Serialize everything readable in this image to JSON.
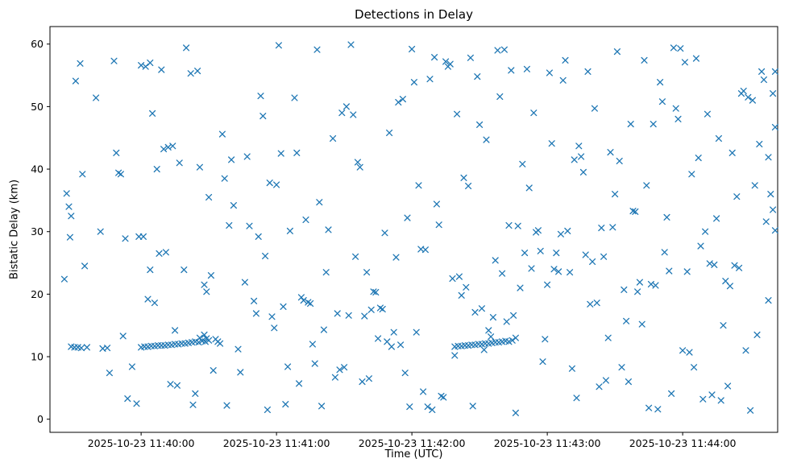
{
  "figure": {
    "title": "Detections in Delay",
    "xlabel": "Time (UTC)",
    "ylabel": "Bistatic Delay (km)"
  },
  "chart_data": {
    "type": "scatter",
    "title": "Detections in Delay",
    "xlabel": "Time (UTC)",
    "ylabel": "Bistatic Delay (km)",
    "marker": "x",
    "marker_color": "#1f77b4",
    "grid": false,
    "legend": "none",
    "x_encoding": "seconds after 2025-10-23 11:39:00 UTC",
    "xlim": [
      19.6,
      342.1
    ],
    "ylim": [
      -2.1,
      62.8
    ],
    "x_ticks": [
      {
        "value": 60,
        "label": "2025-10-23 11:40:00"
      },
      {
        "value": 120,
        "label": "2025-10-23 11:41:00"
      },
      {
        "value": 180,
        "label": "2025-10-23 11:42:00"
      },
      {
        "value": 240,
        "label": "2025-10-23 11:43:00"
      },
      {
        "value": 300,
        "label": "2025-10-23 11:44:00"
      }
    ],
    "y_ticks": [
      0,
      10,
      20,
      30,
      40,
      50,
      60
    ],
    "points": [
      [
        29,
        11.6
      ],
      [
        30.5,
        11.5
      ],
      [
        32,
        11.5
      ],
      [
        33.5,
        11.4
      ],
      [
        36,
        11.5
      ],
      [
        43,
        11.3
      ],
      [
        45,
        11.4
      ],
      [
        26,
        22.4
      ],
      [
        27,
        36.1
      ],
      [
        28,
        34.0
      ],
      [
        28.5,
        29.1
      ],
      [
        29,
        32.5
      ],
      [
        31,
        54.1
      ],
      [
        33,
        56.9
      ],
      [
        34,
        39.2
      ],
      [
        35,
        24.5
      ],
      [
        40,
        51.4
      ],
      [
        42,
        30.0
      ],
      [
        46,
        7.4
      ],
      [
        48,
        57.3
      ],
      [
        49,
        42.6
      ],
      [
        50,
        39.4
      ],
      [
        51,
        39.2
      ],
      [
        52,
        13.3
      ],
      [
        53,
        28.9
      ],
      [
        54,
        3.3
      ],
      [
        56,
        8.4
      ],
      [
        58,
        2.5
      ],
      [
        59,
        29.2
      ],
      [
        60,
        11.5
      ],
      [
        61.5,
        11.6
      ],
      [
        63,
        11.6
      ],
      [
        64.5,
        11.7
      ],
      [
        66,
        11.7
      ],
      [
        67.5,
        11.8
      ],
      [
        69,
        11.8
      ],
      [
        70.5,
        11.8
      ],
      [
        72,
        11.9
      ],
      [
        73.5,
        11.9
      ],
      [
        75,
        12.0
      ],
      [
        76.5,
        12.0
      ],
      [
        78,
        12.1
      ],
      [
        79.5,
        12.1
      ],
      [
        81,
        12.2
      ],
      [
        82.5,
        12.3
      ],
      [
        84,
        12.4
      ],
      [
        85.5,
        12.3
      ],
      [
        87,
        12.5
      ],
      [
        88.5,
        12.4
      ],
      [
        90,
        12.6
      ],
      [
        86,
        13.0
      ],
      [
        88,
        13.5
      ],
      [
        89,
        12.9
      ],
      [
        60,
        56.6
      ],
      [
        61,
        29.2
      ],
      [
        62,
        56.4
      ],
      [
        63,
        19.2
      ],
      [
        64,
        23.9
      ],
      [
        64,
        57.0
      ],
      [
        65,
        48.9
      ],
      [
        66,
        18.6
      ],
      [
        67,
        40.0
      ],
      [
        68,
        26.5
      ],
      [
        69,
        55.9
      ],
      [
        70,
        43.2
      ],
      [
        71,
        26.7
      ],
      [
        72,
        43.5
      ],
      [
        73,
        5.6
      ],
      [
        74,
        43.7
      ],
      [
        75,
        14.2
      ],
      [
        76,
        5.4
      ],
      [
        77,
        41.0
      ],
      [
        79,
        23.9
      ],
      [
        80,
        59.4
      ],
      [
        82,
        55.3
      ],
      [
        83,
        2.3
      ],
      [
        84,
        4.1
      ],
      [
        85,
        55.7
      ],
      [
        86,
        40.3
      ],
      [
        88,
        21.5
      ],
      [
        89,
        20.4
      ],
      [
        90,
        35.5
      ],
      [
        91,
        23.0
      ],
      [
        92,
        7.8
      ],
      [
        93,
        12.8
      ],
      [
        94,
        12.4
      ],
      [
        95,
        12.1
      ],
      [
        96,
        45.6
      ],
      [
        97,
        38.5
      ],
      [
        98,
        2.2
      ],
      [
        99,
        31.0
      ],
      [
        100,
        41.5
      ],
      [
        101,
        34.2
      ],
      [
        103,
        11.2
      ],
      [
        104,
        7.5
      ],
      [
        106,
        21.9
      ],
      [
        107,
        42.0
      ],
      [
        108,
        30.9
      ],
      [
        110,
        18.9
      ],
      [
        111,
        16.9
      ],
      [
        112,
        29.2
      ],
      [
        113,
        51.7
      ],
      [
        114,
        48.5
      ],
      [
        115,
        26.1
      ],
      [
        116,
        1.5
      ],
      [
        117,
        37.8
      ],
      [
        118,
        16.4
      ],
      [
        119,
        14.6
      ],
      [
        120,
        37.5
      ],
      [
        121,
        59.8
      ],
      [
        122,
        42.5
      ],
      [
        123,
        18.0
      ],
      [
        124,
        2.4
      ],
      [
        125,
        8.4
      ],
      [
        126,
        30.1
      ],
      [
        128,
        51.4
      ],
      [
        129,
        42.6
      ],
      [
        130,
        5.7
      ],
      [
        131,
        19.5
      ],
      [
        132,
        19.0
      ],
      [
        133,
        31.9
      ],
      [
        134,
        18.7
      ],
      [
        135,
        18.5
      ],
      [
        136,
        12.0
      ],
      [
        137,
        8.9
      ],
      [
        138,
        59.1
      ],
      [
        139,
        34.7
      ],
      [
        140,
        2.1
      ],
      [
        141,
        14.3
      ],
      [
        142,
        23.5
      ],
      [
        143,
        30.3
      ],
      [
        145,
        44.9
      ],
      [
        146,
        6.7
      ],
      [
        147,
        16.9
      ],
      [
        148,
        7.9
      ],
      [
        149,
        49.0
      ],
      [
        150,
        8.3
      ],
      [
        151,
        50.0
      ],
      [
        152,
        16.6
      ],
      [
        153,
        59.9
      ],
      [
        154,
        48.7
      ],
      [
        155,
        26.0
      ],
      [
        156,
        41.1
      ],
      [
        157,
        40.3
      ],
      [
        158,
        6.0
      ],
      [
        159,
        16.5
      ],
      [
        160,
        23.5
      ],
      [
        161,
        6.5
      ],
      [
        162,
        17.5
      ],
      [
        163,
        20.4
      ],
      [
        164,
        20.3
      ],
      [
        165,
        12.9
      ],
      [
        166,
        17.8
      ],
      [
        167,
        17.6
      ],
      [
        168,
        29.8
      ],
      [
        169,
        12.4
      ],
      [
        170,
        45.8
      ],
      [
        171,
        11.6
      ],
      [
        172,
        13.9
      ],
      [
        173,
        25.9
      ],
      [
        174,
        50.7
      ],
      [
        175,
        11.9
      ],
      [
        176,
        51.2
      ],
      [
        177,
        7.4
      ],
      [
        178,
        32.2
      ],
      [
        179,
        2.0
      ],
      [
        180,
        59.2
      ],
      [
        181,
        53.9
      ],
      [
        182,
        13.9
      ],
      [
        183,
        37.4
      ],
      [
        184,
        27.2
      ],
      [
        185,
        4.4
      ],
      [
        186,
        27.1
      ],
      [
        187,
        2.0
      ],
      [
        188,
        54.4
      ],
      [
        189,
        1.5
      ],
      [
        190,
        57.9
      ],
      [
        191,
        34.4
      ],
      [
        192,
        31.1
      ],
      [
        193,
        3.7
      ],
      [
        194,
        3.5
      ],
      [
        195,
        57.2
      ],
      [
        196,
        56.4
      ],
      [
        197,
        56.8
      ],
      [
        198,
        22.5
      ],
      [
        199,
        10.2
      ],
      [
        200,
        48.8
      ],
      [
        201,
        22.8
      ],
      [
        202,
        19.8
      ],
      [
        203,
        38.6
      ],
      [
        204,
        21.1
      ],
      [
        205,
        37.3
      ],
      [
        206,
        57.8
      ],
      [
        207,
        2.1
      ],
      [
        208,
        17.1
      ],
      [
        209,
        54.8
      ],
      [
        210,
        47.1
      ],
      [
        211,
        17.7
      ],
      [
        212,
        11.1
      ],
      [
        213,
        44.7
      ],
      [
        214,
        14.2
      ],
      [
        215,
        13.2
      ],
      [
        216,
        16.3
      ],
      [
        217,
        25.4
      ],
      [
        218,
        59.0
      ],
      [
        219,
        51.6
      ],
      [
        220,
        23.3
      ],
      [
        221,
        59.1
      ],
      [
        222,
        15.6
      ],
      [
        223,
        31.0
      ],
      [
        224,
        55.8
      ],
      [
        225,
        16.6
      ],
      [
        226,
        1.0
      ],
      [
        227,
        30.9
      ],
      [
        228,
        21.0
      ],
      [
        229,
        40.8
      ],
      [
        230,
        26.6
      ],
      [
        231,
        56.0
      ],
      [
        232,
        37.0
      ],
      [
        233,
        24.1
      ],
      [
        234,
        49.0
      ],
      [
        235,
        29.9
      ],
      [
        236,
        30.2
      ],
      [
        237,
        26.9
      ],
      [
        238,
        9.2
      ],
      [
        239,
        12.8
      ],
      [
        199,
        11.6
      ],
      [
        200.5,
        11.7
      ],
      [
        202,
        11.7
      ],
      [
        203.5,
        11.8
      ],
      [
        205,
        11.8
      ],
      [
        206.5,
        11.9
      ],
      [
        208,
        11.9
      ],
      [
        209.5,
        12.0
      ],
      [
        211,
        12.0
      ],
      [
        212.5,
        12.1
      ],
      [
        214,
        12.1
      ],
      [
        215.5,
        12.2
      ],
      [
        217,
        12.3
      ],
      [
        218.5,
        12.3
      ],
      [
        220,
        12.4
      ],
      [
        221.5,
        12.5
      ],
      [
        223,
        12.4
      ],
      [
        224.5,
        12.6
      ],
      [
        226,
        13.0
      ],
      [
        240,
        21.5
      ],
      [
        241,
        55.4
      ],
      [
        242,
        44.1
      ],
      [
        243,
        24.0
      ],
      [
        244,
        26.6
      ],
      [
        245,
        23.6
      ],
      [
        246,
        29.6
      ],
      [
        247,
        54.2
      ],
      [
        248,
        57.4
      ],
      [
        249,
        30.1
      ],
      [
        250,
        23.5
      ],
      [
        251,
        8.1
      ],
      [
        252,
        41.5
      ],
      [
        253,
        3.4
      ],
      [
        254,
        43.7
      ],
      [
        255,
        42.0
      ],
      [
        256,
        39.5
      ],
      [
        257,
        26.3
      ],
      [
        258,
        55.6
      ],
      [
        259,
        18.4
      ],
      [
        260,
        25.2
      ],
      [
        261,
        49.7
      ],
      [
        262,
        18.6
      ],
      [
        263,
        5.2
      ],
      [
        264,
        30.6
      ],
      [
        265,
        26.0
      ],
      [
        266,
        6.2
      ],
      [
        267,
        13.0
      ],
      [
        268,
        42.7
      ],
      [
        269,
        30.7
      ],
      [
        270,
        36.0
      ],
      [
        271,
        58.8
      ],
      [
        272,
        41.3
      ],
      [
        273,
        8.3
      ],
      [
        274,
        20.7
      ],
      [
        275,
        15.7
      ],
      [
        276,
        6.0
      ],
      [
        277,
        47.2
      ],
      [
        278,
        33.3
      ],
      [
        279,
        33.2
      ],
      [
        280,
        20.4
      ],
      [
        281,
        21.9
      ],
      [
        282,
        15.2
      ],
      [
        283,
        57.4
      ],
      [
        284,
        37.4
      ],
      [
        285,
        1.8
      ],
      [
        286,
        21.6
      ],
      [
        287,
        47.2
      ],
      [
        288,
        21.4
      ],
      [
        289,
        1.6
      ],
      [
        290,
        53.9
      ],
      [
        291,
        50.8
      ],
      [
        292,
        26.7
      ],
      [
        293,
        32.3
      ],
      [
        294,
        23.7
      ],
      [
        295,
        4.1
      ],
      [
        296,
        59.4
      ],
      [
        297,
        49.7
      ],
      [
        298,
        48.0
      ],
      [
        299,
        59.3
      ],
      [
        300,
        11.0
      ],
      [
        301,
        57.1
      ],
      [
        302,
        23.6
      ],
      [
        303,
        10.7
      ],
      [
        304,
        39.2
      ],
      [
        305,
        8.3
      ],
      [
        306,
        57.7
      ],
      [
        307,
        41.8
      ],
      [
        308,
        27.7
      ],
      [
        309,
        3.2
      ],
      [
        310,
        30.0
      ],
      [
        311,
        48.8
      ],
      [
        312,
        24.9
      ],
      [
        313,
        3.9
      ],
      [
        314,
        24.7
      ],
      [
        315,
        32.1
      ],
      [
        316,
        44.9
      ],
      [
        317,
        3.0
      ],
      [
        318,
        15.0
      ],
      [
        319,
        22.1
      ],
      [
        320,
        5.3
      ],
      [
        321,
        21.3
      ],
      [
        322,
        42.6
      ],
      [
        323,
        24.6
      ],
      [
        324,
        35.6
      ],
      [
        325,
        24.2
      ],
      [
        326,
        52.1
      ],
      [
        327,
        52.5
      ],
      [
        328,
        11.0
      ],
      [
        329,
        51.5
      ],
      [
        330,
        1.4
      ],
      [
        331,
        51.0
      ],
      [
        332,
        37.4
      ],
      [
        333,
        13.5
      ],
      [
        334,
        44.0
      ],
      [
        335,
        55.6
      ],
      [
        336,
        54.3
      ],
      [
        337,
        31.6
      ],
      [
        338,
        41.9
      ],
      [
        338,
        19.0
      ],
      [
        339,
        36.0
      ],
      [
        340,
        33.5
      ],
      [
        340,
        52.1
      ],
      [
        341,
        46.7
      ],
      [
        341,
        30.2
      ],
      [
        341,
        55.6
      ]
    ]
  }
}
